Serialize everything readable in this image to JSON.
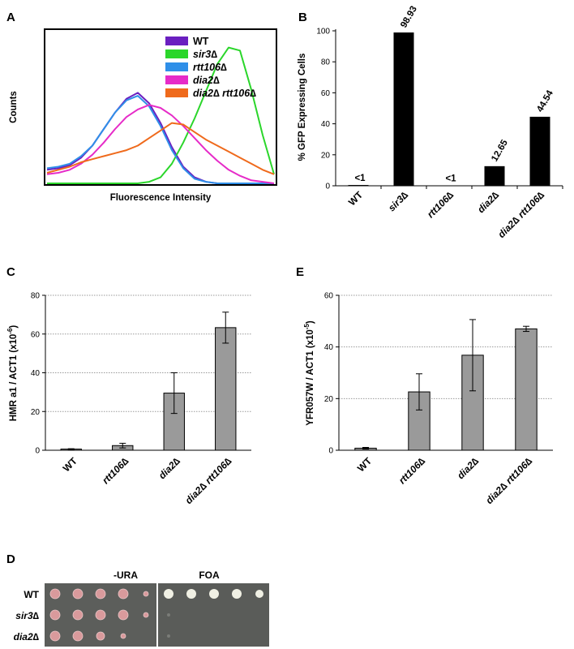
{
  "panel_labels": [
    "A",
    "B",
    "C",
    "E",
    "D"
  ],
  "chart_data": [
    {
      "panel": "A",
      "type": "line",
      "xlabel": "Fluorescence Intensity",
      "ylabel": "Counts",
      "series": [
        {
          "name": "WT",
          "color": "#6a1fc0",
          "x": [
            0,
            5,
            10,
            15,
            20,
            25,
            30,
            35,
            40,
            45,
            50,
            55,
            60,
            65,
            70,
            75,
            80,
            85,
            90,
            95,
            100
          ],
          "y": [
            0.09,
            0.1,
            0.12,
            0.17,
            0.25,
            0.36,
            0.47,
            0.56,
            0.6,
            0.53,
            0.4,
            0.24,
            0.11,
            0.04,
            0.01,
            0,
            0,
            0,
            0,
            0,
            0
          ]
        },
        {
          "name": "sir3∆",
          "color": "#2bd62b",
          "x": [
            0,
            5,
            10,
            15,
            20,
            25,
            30,
            35,
            40,
            45,
            50,
            55,
            60,
            65,
            70,
            75,
            80,
            85,
            90,
            95,
            100
          ],
          "y": [
            0,
            0,
            0,
            0,
            0,
            0,
            0,
            0,
            0,
            0.01,
            0.04,
            0.13,
            0.27,
            0.43,
            0.61,
            0.79,
            0.9,
            0.88,
            0.62,
            0.32,
            0.06
          ]
        },
        {
          "name": "rtt106∆",
          "color": "#2f8fe8",
          "x": [
            0,
            5,
            10,
            15,
            20,
            25,
            30,
            35,
            40,
            45,
            50,
            55,
            60,
            65,
            70,
            75,
            80,
            85,
            90,
            95,
            100
          ],
          "y": [
            0.1,
            0.11,
            0.13,
            0.18,
            0.25,
            0.36,
            0.47,
            0.55,
            0.58,
            0.51,
            0.38,
            0.22,
            0.1,
            0.03,
            0.01,
            0,
            0,
            0,
            0,
            0,
            0
          ]
        },
        {
          "name": "dia2∆",
          "color": "#e62bc8",
          "x": [
            0,
            5,
            10,
            15,
            20,
            25,
            30,
            35,
            40,
            45,
            50,
            55,
            60,
            65,
            70,
            75,
            80,
            85,
            90,
            95,
            100
          ],
          "y": [
            0.06,
            0.07,
            0.09,
            0.13,
            0.19,
            0.27,
            0.36,
            0.44,
            0.49,
            0.52,
            0.5,
            0.45,
            0.38,
            0.3,
            0.22,
            0.15,
            0.09,
            0.05,
            0.02,
            0.01,
            0
          ]
        },
        {
          "name": "dia2∆ rtt106∆",
          "color": "#ef6a1c",
          "x": [
            0,
            5,
            10,
            15,
            20,
            25,
            30,
            35,
            40,
            45,
            50,
            55,
            60,
            65,
            70,
            75,
            80,
            85,
            90,
            95,
            100
          ],
          "y": [
            0.07,
            0.09,
            0.11,
            0.14,
            0.16,
            0.18,
            0.2,
            0.22,
            0.25,
            0.3,
            0.35,
            0.4,
            0.39,
            0.34,
            0.29,
            0.25,
            0.21,
            0.17,
            0.13,
            0.09,
            0.06
          ]
        }
      ]
    },
    {
      "panel": "B",
      "type": "bar",
      "categories": [
        "WT",
        "sir3∆",
        "rtt106∆",
        "dia2∆",
        "dia2∆ rtt106∆"
      ],
      "values": [
        0.5,
        98.93,
        0.2,
        12.65,
        44.54
      ],
      "data_labels": [
        "<1",
        "98.93",
        "<1",
        "12.65",
        "44.54"
      ],
      "ylabel": "% GFP Expressing Cells",
      "ylim": [
        0,
        100
      ],
      "yticks": [
        "0",
        "20",
        "40",
        "60",
        "80",
        "100"
      ],
      "bar_color": "#000000"
    },
    {
      "panel": "C",
      "type": "bar",
      "categories": [
        "WT",
        "rtt106∆",
        "dia2∆",
        "dia2∆ rtt106∆"
      ],
      "values": [
        0.6,
        2.4,
        29.5,
        63.3
      ],
      "errors": [
        0.2,
        1.2,
        10.5,
        8.0
      ],
      "ylabel_main": "HMR a1 / ACT1 (x10",
      "ylabel_sup": "-6",
      "ylabel_end": ")",
      "ylim": [
        0,
        80
      ],
      "yticks": [
        "0",
        "20",
        "40",
        "60",
        "80"
      ],
      "grid": true,
      "bar_color": "#9a9a9a"
    },
    {
      "panel": "E",
      "type": "bar",
      "categories": [
        "WT",
        "rtt106∆",
        "dia2∆",
        "dia2∆ rtt106∆"
      ],
      "values": [
        0.8,
        22.6,
        36.8,
        47.0
      ],
      "errors": [
        0.3,
        7.0,
        13.8,
        1.0
      ],
      "ylabel_main": "YFR057W / ACT1  (x10",
      "ylabel_sup": "-5",
      "ylabel_end": ")",
      "ylim": [
        0,
        60
      ],
      "yticks": [
        "0",
        "20",
        "40",
        "60"
      ],
      "grid": true,
      "bar_color": "#9a9a9a"
    }
  ],
  "plate": {
    "headers": [
      "-URA",
      "FOA"
    ],
    "rows": [
      "WT",
      "sir3∆",
      "dia2∆"
    ]
  }
}
